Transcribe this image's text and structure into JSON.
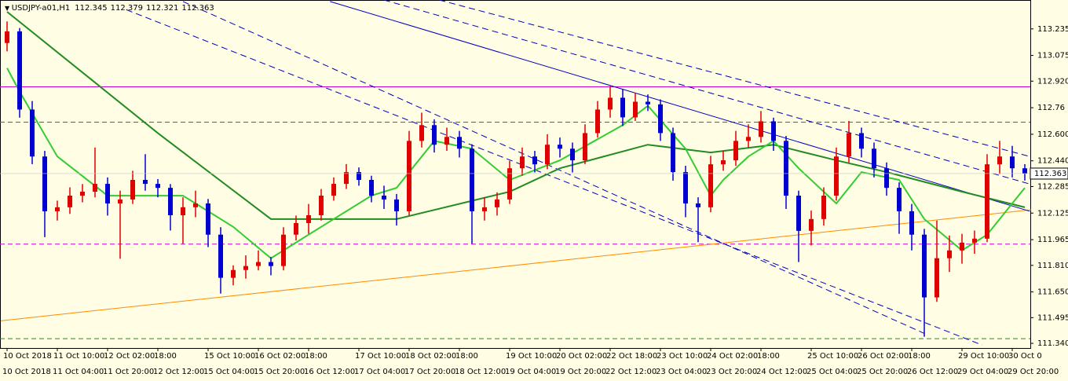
{
  "chart_data": {
    "type": "candlestick",
    "symbol": "USDJPY-a01,H1",
    "header_ohlc": [
      112.345,
      112.379,
      112.321,
      112.363
    ],
    "last_price": 112.363,
    "ylim": [
      111.312,
      113.409
    ],
    "yticks": [
      113.235,
      113.075,
      {
        "value": 112.92,
        "label": "112.920"
      },
      112.76,
      {
        "value": 112.6,
        "label": "112.600"
      },
      {
        "value": 112.44,
        "label": "112.440"
      },
      112.285,
      112.125,
      111.965,
      {
        "value": 111.81,
        "label": "111.810"
      },
      {
        "value": 111.65,
        "label": "111.650"
      },
      111.495,
      {
        "value": 111.34,
        "label": "111.340"
      }
    ],
    "x_labels_top": [
      "10 Oct 2018",
      "11 Oct 10:00",
      "12 Oct 02:00",
      "18:00",
      "15 Oct 10:00",
      "16 Oct 02:00",
      "18:00",
      "17 Oct 10:00",
      "18 Oct 02:00",
      "18:00",
      "19 Oct 10:00",
      "20 Oct 02:00",
      "22 Oct 18:00",
      "23 Oct 10:00",
      "24 Oct 02:00",
      "18:00",
      "25 Oct 10:00",
      "26 Oct 02:00",
      "18:00",
      "29 Oct 10:00",
      "30 Oct 0"
    ],
    "x_labels_bottom": [
      "10 Oct 2018",
      "11 Oct 04:00",
      "11 Oct 20:00",
      "12 Oct 12:00",
      "15 Oct 04:00",
      "15 Oct 20:00",
      "16 Oct 12:00",
      "17 Oct 04:00",
      "17 Oct 20:00",
      "18 Oct 12:00",
      "19 Oct 04:00",
      "19 Oct 20:00",
      "22 Oct 12:00",
      "23 Oct 04:00",
      "23 Oct 20:00",
      "24 Oct 12:00",
      "25 Oct 04:00",
      "25 Oct 20:00",
      "26 Oct 12:00",
      "29 Oct 04:00",
      "29 Oct 20:00"
    ],
    "up_color": "#e00000",
    "down_color": "#0000d0",
    "candles": [
      [
        113.15,
        113.28,
        113.1,
        113.22
      ],
      [
        113.22,
        113.24,
        112.7,
        112.749
      ],
      [
        112.749,
        112.8,
        112.42,
        112.466
      ],
      [
        112.466,
        112.5,
        111.98,
        112.136
      ],
      [
        112.136,
        112.2,
        112.08,
        112.16
      ],
      [
        112.16,
        112.28,
        112.12,
        112.23
      ],
      [
        112.23,
        112.3,
        112.19,
        112.254
      ],
      [
        112.254,
        112.52,
        112.22,
        112.301
      ],
      [
        112.301,
        112.34,
        112.11,
        112.183
      ],
      [
        112.183,
        112.26,
        111.85,
        112.207
      ],
      [
        112.207,
        112.38,
        112.18,
        112.325
      ],
      [
        112.325,
        112.48,
        112.26,
        112.301
      ],
      [
        112.301,
        112.33,
        112.22,
        112.277
      ],
      [
        112.277,
        112.3,
        112.02,
        112.112
      ],
      [
        112.112,
        112.22,
        111.94,
        112.16
      ],
      [
        112.16,
        112.26,
        112.1,
        112.183
      ],
      [
        112.183,
        112.21,
        111.92,
        111.995
      ],
      [
        111.995,
        112.04,
        111.64,
        111.735
      ],
      [
        111.735,
        111.81,
        111.69,
        111.782
      ],
      [
        111.782,
        111.87,
        111.73,
        111.806
      ],
      [
        111.806,
        111.9,
        111.78,
        111.83
      ],
      [
        111.83,
        111.86,
        111.75,
        111.806
      ],
      [
        111.806,
        112.04,
        111.78,
        111.995
      ],
      [
        111.995,
        112.11,
        111.96,
        112.065
      ],
      [
        112.065,
        112.18,
        112.0,
        112.112
      ],
      [
        112.112,
        112.27,
        112.08,
        112.23
      ],
      [
        112.23,
        112.34,
        112.2,
        112.301
      ],
      [
        112.301,
        112.42,
        112.27,
        112.372
      ],
      [
        112.372,
        112.4,
        112.29,
        112.325
      ],
      [
        112.325,
        112.35,
        112.19,
        112.23
      ],
      [
        112.23,
        112.29,
        112.15,
        112.207
      ],
      [
        112.207,
        112.24,
        112.05,
        112.136
      ],
      [
        112.136,
        112.62,
        112.11,
        112.56
      ],
      [
        112.56,
        112.73,
        112.52,
        112.655
      ],
      [
        112.655,
        112.69,
        112.49,
        112.537
      ],
      [
        112.537,
        112.64,
        112.5,
        112.584
      ],
      [
        112.584,
        112.62,
        112.46,
        112.513
      ],
      [
        112.513,
        112.54,
        111.94,
        112.136
      ],
      [
        112.136,
        112.22,
        112.08,
        112.16
      ],
      [
        112.16,
        112.25,
        112.11,
        112.207
      ],
      [
        112.207,
        112.44,
        112.18,
        112.395
      ],
      [
        112.395,
        112.52,
        112.35,
        112.466
      ],
      [
        112.466,
        112.5,
        112.37,
        112.419
      ],
      [
        112.419,
        112.6,
        112.39,
        112.537
      ],
      [
        112.537,
        112.58,
        112.46,
        112.513
      ],
      [
        112.513,
        112.55,
        112.37,
        112.443
      ],
      [
        112.443,
        112.66,
        112.42,
        112.607
      ],
      [
        112.607,
        112.8,
        112.58,
        112.749
      ],
      [
        112.749,
        112.89,
        112.7,
        112.82
      ],
      [
        112.82,
        112.87,
        112.65,
        112.702
      ],
      [
        112.702,
        112.85,
        112.68,
        112.796
      ],
      [
        112.796,
        112.84,
        112.74,
        112.78
      ],
      [
        112.78,
        112.81,
        112.56,
        112.607
      ],
      [
        112.607,
        112.64,
        112.32,
        112.372
      ],
      [
        112.372,
        112.41,
        112.1,
        112.183
      ],
      [
        112.183,
        112.22,
        111.95,
        112.16
      ],
      [
        112.16,
        112.47,
        112.13,
        112.419
      ],
      [
        112.419,
        112.5,
        112.38,
        112.443
      ],
      [
        112.443,
        112.62,
        112.41,
        112.56
      ],
      [
        112.56,
        112.66,
        112.52,
        112.584
      ],
      [
        112.584,
        112.74,
        112.55,
        112.678
      ],
      [
        112.678,
        112.7,
        112.5,
        112.56
      ],
      [
        112.56,
        112.59,
        112.15,
        112.23
      ],
      [
        112.23,
        112.26,
        111.83,
        112.018
      ],
      [
        112.018,
        112.14,
        111.93,
        112.089
      ],
      [
        112.089,
        112.28,
        112.05,
        112.23
      ],
      [
        112.23,
        112.52,
        112.2,
        112.466
      ],
      [
        112.466,
        112.68,
        112.43,
        112.607
      ],
      [
        112.607,
        112.64,
        112.46,
        112.513
      ],
      [
        112.513,
        112.55,
        112.34,
        112.395
      ],
      [
        112.395,
        112.43,
        112.23,
        112.277
      ],
      [
        112.277,
        112.31,
        112.0,
        112.136
      ],
      [
        112.136,
        112.18,
        111.9,
        111.995
      ],
      [
        111.995,
        112.03,
        111.38,
        111.617
      ],
      [
        111.617,
        112.08,
        111.59,
        111.853
      ],
      [
        111.853,
        111.99,
        111.77,
        111.9
      ],
      [
        111.9,
        112.0,
        111.82,
        111.947
      ],
      [
        111.947,
        112.02,
        111.88,
        111.971
      ],
      [
        111.971,
        112.48,
        111.95,
        112.419
      ],
      [
        112.419,
        112.56,
        112.36,
        112.466
      ],
      [
        112.466,
        112.53,
        112.34,
        112.395
      ],
      [
        112.395,
        112.42,
        112.321,
        112.363
      ]
    ],
    "moving_averages": [
      {
        "color": "#228b22",
        "x": [
          0,
          12,
          21,
          31,
          40,
          44,
          51,
          56,
          61,
          66,
          70,
          76,
          81
        ],
        "values": [
          113.338,
          112.607,
          112.089,
          112.089,
          112.254,
          112.395,
          112.537,
          112.49,
          112.537,
          112.443,
          112.372,
          112.254,
          112.16
        ]
      },
      {
        "color": "#32cd32",
        "x": [
          0,
          1,
          4,
          8,
          14,
          18,
          21,
          24,
          29,
          31,
          34,
          37,
          40,
          44,
          49,
          51,
          54,
          56,
          57,
          59,
          61,
          63,
          66,
          68,
          71,
          73,
          76,
          78,
          81
        ],
        "values": [
          112.999,
          112.857,
          112.466,
          112.23,
          112.23,
          112.042,
          111.853,
          111.995,
          112.23,
          112.277,
          112.56,
          112.513,
          112.325,
          112.443,
          112.655,
          112.772,
          112.513,
          112.23,
          112.325,
          112.466,
          112.56,
          112.395,
          112.183,
          112.372,
          112.325,
          112.089,
          111.9,
          111.995,
          112.277
        ]
      }
    ],
    "horizontal_lines": [
      {
        "value": 112.886,
        "color": "#cc00cc",
        "dashed": false
      },
      {
        "value": 112.673,
        "color": "#228b22",
        "dashed": true
      },
      {
        "value": 111.938,
        "color": "#cc00cc",
        "dashed": true
      },
      {
        "value": 111.368,
        "color": "#228b22",
        "dashed": true
      }
    ],
    "trendlines": [
      {
        "color": "#ff8c00",
        "dashed": false,
        "x": [
          -0.5,
          81.5
        ],
        "values": [
          111.476,
          112.145
        ]
      },
      {
        "color": "#0000c0",
        "dashed": false,
        "x": [
          25.7,
          81.4
        ],
        "values": [
          113.4,
          112.136
        ]
      },
      {
        "color": "#0000c0",
        "dashed": true,
        "x": [
          34.4,
          81.4
        ],
        "values": [
          113.409,
          112.466
        ]
      },
      {
        "color": "#0000c0",
        "dashed": true,
        "x": [
          30,
          81.4
        ],
        "values": [
          113.409,
          112.3
        ]
      },
      {
        "color": "#0000c0",
        "dashed": true,
        "x": [
          9.5,
          77.6
        ],
        "values": [
          113.35,
          111.33
        ]
      },
      {
        "color": "#0000c0",
        "dashed": true,
        "x": [
          14,
          73
        ],
        "values": [
          113.4,
          111.4
        ]
      }
    ]
  }
}
